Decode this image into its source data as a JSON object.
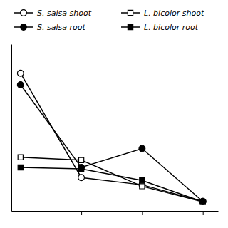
{
  "chart_data": {
    "type": "line",
    "x": [
      0,
      1,
      2,
      3
    ],
    "series": [
      {
        "name": "S. salsa shoot",
        "color": "#000000",
        "marker": "circle-open",
        "values": [
          9.0,
          1.8,
          1.3,
          0.15
        ]
      },
      {
        "name": "S. salsa root",
        "color": "#000000",
        "marker": "circle",
        "values": [
          8.2,
          2.5,
          3.8,
          0.15
        ]
      },
      {
        "name": "L. bicolor shoot",
        "color": "#000000",
        "marker": "square-open",
        "values": [
          3.2,
          3.0,
          1.2,
          0.12
        ]
      },
      {
        "name": "L. bicolor root",
        "color": "#000000",
        "marker": "square",
        "values": [
          2.5,
          2.4,
          1.6,
          0.13
        ]
      }
    ],
    "xlim": [
      -0.15,
      3.25
    ],
    "xticks": [
      1,
      2,
      3
    ],
    "ylim": [
      -0.5,
      11.0
    ],
    "tick_labels": false,
    "grid": false,
    "legend": "top"
  }
}
